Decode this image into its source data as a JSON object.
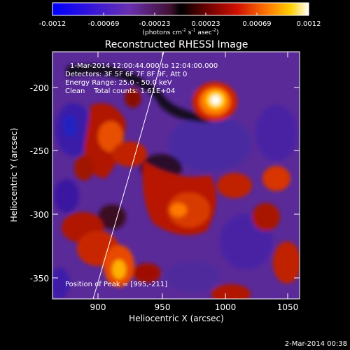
{
  "colorbar": {
    "ticks": [
      "-0.0012",
      "-0.00069",
      "-0.00023",
      "0.00023",
      "0.00069",
      "0.0012"
    ],
    "unit_label": "(photons cm",
    "unit_exp1": "-2",
    "unit_mid": " s",
    "unit_exp2": "-1",
    "unit_end": " asec",
    "unit_exp3": "-2",
    "unit_close": ")"
  },
  "plot": {
    "title": "Reconstructed RHESSI Image",
    "xlabel": "Heliocentric X (arcsec)",
    "ylabel": "Heliocentric Y (arcsec)",
    "x_ticks": [
      "900",
      "950",
      "1000",
      "1050"
    ],
    "y_ticks": [
      "-200",
      "-250",
      "-300",
      "-350"
    ],
    "xlim": [
      866,
      1054
    ],
    "ylim": [
      -368,
      -172
    ]
  },
  "info": {
    "line1": "1-Mar-2014 12:00:44.000 to 12:04:00.000",
    "line2": "Detectors: 3F 5F 6F 7F 8F 9F, Att 0",
    "line3": "Energy Range: 25.0 - 50.0 keV",
    "line4": "Clean    Total counts: 1.61E+04",
    "peak": "Position of Peak = [995,-211]"
  },
  "footer": {
    "timestamp": "2-Mar-2014 00:38"
  }
}
